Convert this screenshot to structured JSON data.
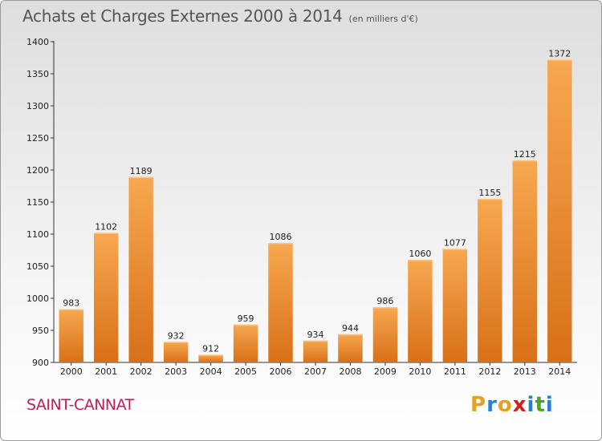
{
  "header": {
    "title": "Achats et Charges Externes 2000 à 2014",
    "subtitle": "(en milliers d'€)"
  },
  "footer": {
    "city": "SAINT-CANNAT",
    "logo_letters": [
      "P",
      "r",
      "o",
      "x",
      "i",
      "t",
      "i"
    ],
    "logo_colors": [
      "#e8a020",
      "#2a7fd0",
      "#e8a020",
      "#d02020",
      "#2a7fd0",
      "#50a030",
      "#2a7fd0"
    ]
  },
  "chart_data": {
    "type": "bar",
    "title": "Achats et Charges Externes 2000 à 2014",
    "subtitle": "(en milliers d'€)",
    "categories": [
      "2000",
      "2001",
      "2002",
      "2003",
      "2004",
      "2005",
      "2006",
      "2007",
      "2008",
      "2009",
      "2010",
      "2011",
      "2012",
      "2013",
      "2014"
    ],
    "values": [
      983,
      1102,
      1189,
      932,
      912,
      959,
      1086,
      934,
      944,
      986,
      1060,
      1077,
      1155,
      1215,
      1372
    ],
    "ylim": [
      900,
      1400
    ],
    "yticks": [
      900,
      950,
      1000,
      1050,
      1100,
      1150,
      1200,
      1250,
      1300,
      1350,
      1400
    ],
    "grid": false,
    "bar_color": "#f0922e",
    "bar_color_light": "#f7b060",
    "bar_color_dark": "#d87018"
  }
}
